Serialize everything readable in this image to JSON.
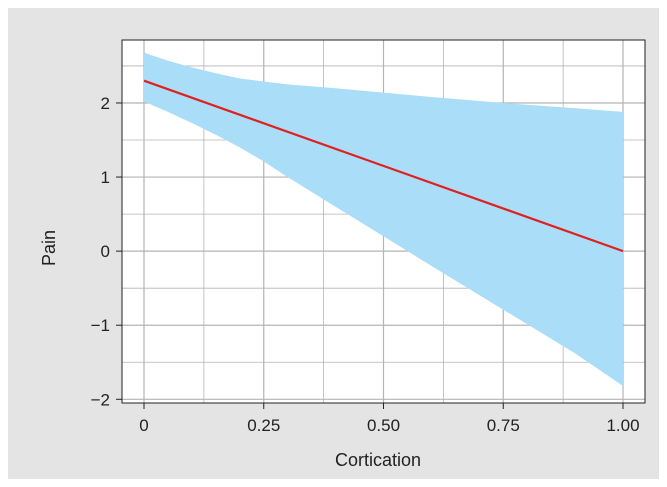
{
  "chart_data": {
    "type": "line",
    "title": "",
    "xlabel": "Cortication",
    "ylabel": "Pain",
    "xlim": [
      0,
      1
    ],
    "ylim": [
      -2.05,
      2.85
    ],
    "x_ticks": [
      0,
      0.25,
      0.5,
      0.75,
      1.0
    ],
    "x_tick_labels": [
      "0",
      "0.25",
      "0.50",
      "0.75",
      "1.00"
    ],
    "y_ticks": [
      -2,
      -1,
      0,
      1,
      2
    ],
    "y_tick_labels": [
      "−2",
      "−1",
      "0",
      "1",
      "2"
    ],
    "grid": true,
    "series": [
      {
        "kind": "line",
        "color": "#e02020",
        "x": [
          0,
          1.0
        ],
        "y": [
          2.3,
          0.0
        ]
      },
      {
        "kind": "confidence-band",
        "color": "#aaddf7",
        "x": [
          0,
          0.05,
          0.1,
          0.15,
          0.2,
          0.25,
          0.3,
          0.4,
          0.5,
          0.6,
          0.75,
          0.9,
          1.0
        ],
        "upper": [
          2.68,
          2.57,
          2.48,
          2.4,
          2.33,
          2.29,
          2.25,
          2.2,
          2.14,
          2.08,
          2.0,
          1.93,
          1.88
        ],
        "lower": [
          2.02,
          1.88,
          1.73,
          1.57,
          1.4,
          1.21,
          1.0,
          0.6,
          0.2,
          -0.2,
          -0.79,
          -1.38,
          -1.82
        ]
      }
    ]
  }
}
